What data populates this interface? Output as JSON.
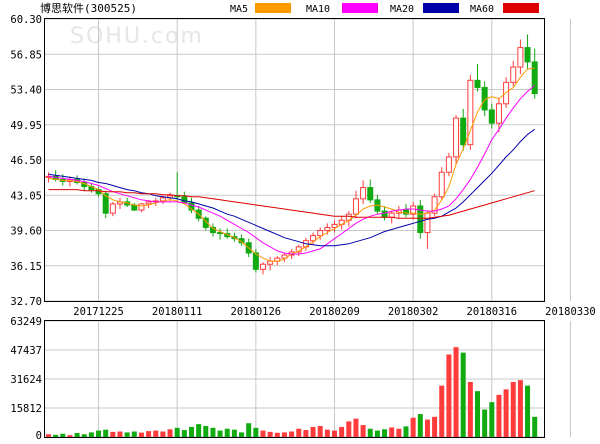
{
  "header": {
    "stock_label": "博思软件(300525)",
    "watermark": "SOHU.com",
    "legend": [
      {
        "name": "MA5",
        "color": "#ff9900"
      },
      {
        "name": "MA10",
        "color": "#ff00ff"
      },
      {
        "name": "MA20",
        "color": "#0000aa"
      },
      {
        "name": "MA60",
        "color": "#dd0000"
      }
    ]
  },
  "colors": {
    "up": "#ff3b3b",
    "down": "#11aa11",
    "grid": "#c8c8c8",
    "axis": "#000000"
  },
  "chart_data": [
    {
      "type": "candlestick",
      "title": "",
      "y_ticks": [
        "60.30",
        "56.85",
        "53.40",
        "49.95",
        "46.50",
        "43.05",
        "39.60",
        "36.15",
        "32.70"
      ],
      "ylim": [
        32.7,
        60.3
      ],
      "x_ticks": [
        "20171225",
        "20180111",
        "20180126",
        "20180209",
        "20180302",
        "20180316",
        "20180330"
      ],
      "x_tick_index": [
        7,
        18,
        29,
        40,
        51,
        62,
        73
      ],
      "candles": [
        [
          44.8,
          45.3,
          44.3,
          44.9
        ],
        [
          44.9,
          45.5,
          44.4,
          44.6
        ],
        [
          44.6,
          45.1,
          44.0,
          44.4
        ],
        [
          44.4,
          44.9,
          43.9,
          44.6
        ],
        [
          44.6,
          45.0,
          44.1,
          44.3
        ],
        [
          44.3,
          44.7,
          43.5,
          43.9
        ],
        [
          43.9,
          44.2,
          43.3,
          43.6
        ],
        [
          43.6,
          43.9,
          42.9,
          43.2
        ],
        [
          43.2,
          43.5,
          40.8,
          41.3
        ],
        [
          41.3,
          42.4,
          41.0,
          42.2
        ],
        [
          42.2,
          42.8,
          41.7,
          42.4
        ],
        [
          42.4,
          42.8,
          41.9,
          42.1
        ],
        [
          42.1,
          42.3,
          41.5,
          41.6
        ],
        [
          41.6,
          42.3,
          41.4,
          42.2
        ],
        [
          42.2,
          42.6,
          41.8,
          42.4
        ],
        [
          42.4,
          42.8,
          42.0,
          42.5
        ],
        [
          42.5,
          43.0,
          42.2,
          42.8
        ],
        [
          42.8,
          43.3,
          42.4,
          43.0
        ],
        [
          43.0,
          45.3,
          42.6,
          42.9
        ],
        [
          42.9,
          43.4,
          42.2,
          42.3
        ],
        [
          42.3,
          42.8,
          41.3,
          41.6
        ],
        [
          41.6,
          42.0,
          40.5,
          40.8
        ],
        [
          40.8,
          41.0,
          39.6,
          39.9
        ],
        [
          39.9,
          40.3,
          39.0,
          39.4
        ],
        [
          39.4,
          39.8,
          38.7,
          39.3
        ],
        [
          39.3,
          39.8,
          38.8,
          39.0
        ],
        [
          39.0,
          39.4,
          38.5,
          38.8
        ],
        [
          38.8,
          39.2,
          38.1,
          38.4
        ],
        [
          38.4,
          38.8,
          37.0,
          37.4
        ],
        [
          37.4,
          37.8,
          35.5,
          35.8
        ],
        [
          35.8,
          36.5,
          35.3,
          36.3
        ],
        [
          36.3,
          37.0,
          35.7,
          36.6
        ],
        [
          36.6,
          37.1,
          36.2,
          36.9
        ],
        [
          36.9,
          37.4,
          36.5,
          37.2
        ],
        [
          37.2,
          37.8,
          36.8,
          37.5
        ],
        [
          37.5,
          38.2,
          37.1,
          38.0
        ],
        [
          38.0,
          38.9,
          37.6,
          38.6
        ],
        [
          38.6,
          39.4,
          38.2,
          39.1
        ],
        [
          39.1,
          39.9,
          38.7,
          39.6
        ],
        [
          39.6,
          40.3,
          39.2,
          39.9
        ],
        [
          39.9,
          40.6,
          39.4,
          40.2
        ],
        [
          40.2,
          41.0,
          39.7,
          40.6
        ],
        [
          40.6,
          41.5,
          40.0,
          41.2
        ],
        [
          41.2,
          43.5,
          40.8,
          42.7
        ],
        [
          42.7,
          44.5,
          42.2,
          43.8
        ],
        [
          43.8,
          44.6,
          42.3,
          42.6
        ],
        [
          42.6,
          43.1,
          41.2,
          41.5
        ],
        [
          41.5,
          42.0,
          40.6,
          40.9
        ],
        [
          40.9,
          41.5,
          40.3,
          41.3
        ],
        [
          41.3,
          42.0,
          40.8,
          41.6
        ],
        [
          41.6,
          42.2,
          40.9,
          41.2
        ],
        [
          41.2,
          42.4,
          40.7,
          42.0
        ],
        [
          42.0,
          42.6,
          38.8,
          39.4
        ],
        [
          39.4,
          41.5,
          37.8,
          41.3
        ],
        [
          41.3,
          43.2,
          41.0,
          42.9
        ],
        [
          42.9,
          45.8,
          42.6,
          45.3
        ],
        [
          45.3,
          47.2,
          44.9,
          46.8
        ],
        [
          46.8,
          50.9,
          46.0,
          50.6
        ],
        [
          50.6,
          51.5,
          47.4,
          48.0
        ],
        [
          48.0,
          54.8,
          47.5,
          54.3
        ],
        [
          54.3,
          55.9,
          53.2,
          53.6
        ],
        [
          53.6,
          54.2,
          50.8,
          51.4
        ],
        [
          51.4,
          52.0,
          49.6,
          50.1
        ],
        [
          50.1,
          52.6,
          49.2,
          52.0
        ],
        [
          52.0,
          54.6,
          51.6,
          54.1
        ],
        [
          54.1,
          56.2,
          53.7,
          55.6
        ],
        [
          55.6,
          58.3,
          54.9,
          57.5
        ],
        [
          57.5,
          58.8,
          55.4,
          56.1
        ],
        [
          56.1,
          57.4,
          52.5,
          53.0
        ]
      ],
      "ma": {
        "MA5": [
          44.7,
          44.6,
          44.5,
          44.5,
          44.4,
          44.2,
          43.9,
          43.6,
          43.0,
          42.6,
          42.4,
          42.3,
          42.1,
          42.0,
          42.1,
          42.3,
          42.5,
          42.6,
          42.5,
          42.2,
          41.7,
          41.2,
          40.5,
          39.8,
          39.5,
          39.2,
          38.9,
          38.5,
          37.9,
          37.3,
          36.9,
          36.6,
          36.6,
          36.8,
          37.3,
          37.6,
          38.0,
          38.5,
          39.0,
          39.4,
          39.8,
          40.2,
          40.6,
          41.1,
          41.7,
          42.0,
          42.1,
          41.9,
          41.7,
          41.4,
          41.3,
          41.3,
          41.2,
          41.3,
          41.6,
          42.6,
          43.9,
          46.1,
          47.6,
          49.4,
          51.2,
          52.4,
          52.7,
          52.5,
          53.1,
          53.6,
          54.6,
          55.4,
          55.5
        ],
        "MA10": [
          44.9,
          44.8,
          44.7,
          44.6,
          44.5,
          44.4,
          44.2,
          44.0,
          43.7,
          43.4,
          43.2,
          43.0,
          42.8,
          42.6,
          42.5,
          42.4,
          42.4,
          42.4,
          42.4,
          42.3,
          42.1,
          41.9,
          41.6,
          41.3,
          41.0,
          40.6,
          40.2,
          39.8,
          39.4,
          38.9,
          38.4,
          38.0,
          37.6,
          37.4,
          37.3,
          37.3,
          37.4,
          37.6,
          37.8,
          38.3,
          38.8,
          39.3,
          39.8,
          40.3,
          40.7,
          41.0,
          41.2,
          41.3,
          41.5,
          41.6,
          41.7,
          41.7,
          41.6,
          41.5,
          41.5,
          41.7,
          42.0,
          42.7,
          43.6,
          44.6,
          45.8,
          47.1,
          48.5,
          49.5,
          50.6,
          51.6,
          52.5,
          53.2,
          53.8
        ],
        "MA20": [
          45.1,
          45.0,
          44.9,
          44.8,
          44.7,
          44.6,
          44.5,
          44.3,
          44.2,
          44.0,
          43.8,
          43.6,
          43.5,
          43.3,
          43.2,
          43.0,
          42.9,
          42.8,
          42.7,
          42.5,
          42.4,
          42.2,
          42.0,
          41.8,
          41.5,
          41.2,
          41.0,
          40.7,
          40.4,
          40.1,
          39.8,
          39.5,
          39.2,
          38.9,
          38.7,
          38.5,
          38.3,
          38.2,
          38.1,
          38.1,
          38.1,
          38.2,
          38.3,
          38.5,
          38.7,
          38.9,
          39.2,
          39.5,
          39.7,
          39.9,
          40.1,
          40.3,
          40.5,
          40.7,
          40.8,
          41.0,
          41.4,
          41.8,
          42.4,
          43.1,
          43.8,
          44.5,
          45.2,
          46.0,
          46.8,
          47.5,
          48.3,
          49.0,
          49.5
        ],
        "MA60": [
          43.6,
          43.6,
          43.6,
          43.6,
          43.6,
          43.5,
          43.5,
          43.5,
          43.4,
          43.4,
          43.4,
          43.3,
          43.3,
          43.2,
          43.2,
          43.2,
          43.1,
          43.1,
          43.0,
          43.0,
          42.9,
          42.9,
          42.8,
          42.7,
          42.6,
          42.5,
          42.4,
          42.3,
          42.2,
          42.1,
          42.0,
          41.9,
          41.8,
          41.7,
          41.6,
          41.5,
          41.4,
          41.3,
          41.2,
          41.1,
          41.0,
          41.0,
          41.0,
          40.9,
          40.9,
          40.9,
          40.9,
          40.9,
          40.9,
          40.8,
          40.8,
          40.8,
          40.8,
          40.8,
          40.9,
          41.0,
          41.1,
          41.3,
          41.5,
          41.7,
          41.9,
          42.1,
          42.3,
          42.5,
          42.7,
          42.9,
          43.1,
          43.3,
          43.5
        ]
      }
    },
    {
      "type": "bar",
      "title": "",
      "y_ticks": [
        "63249",
        "47437",
        "31624",
        "15812",
        "0"
      ],
      "ylim": [
        0,
        63249
      ],
      "volume": [
        1500,
        1200,
        1800,
        1000,
        2200,
        1500,
        2500,
        3500,
        4000,
        2800,
        3000,
        2500,
        3000,
        2400,
        3200,
        3500,
        3000,
        4200,
        5000,
        3800,
        5500,
        7000,
        6000,
        5000,
        3500,
        4500,
        4000,
        2500,
        7500,
        5000,
        3500,
        2800,
        2300,
        2500,
        3000,
        4500,
        3800,
        5500,
        6000,
        4000,
        3500,
        5500,
        8500,
        10000,
        6500,
        4500,
        3500,
        4200,
        5200,
        4500,
        5800,
        10500,
        12500,
        9500,
        11000,
        28000,
        45000,
        49000,
        46000,
        30000,
        25000,
        15000,
        19000,
        23000,
        26000,
        30000,
        31000,
        28000,
        11000
      ]
    }
  ]
}
